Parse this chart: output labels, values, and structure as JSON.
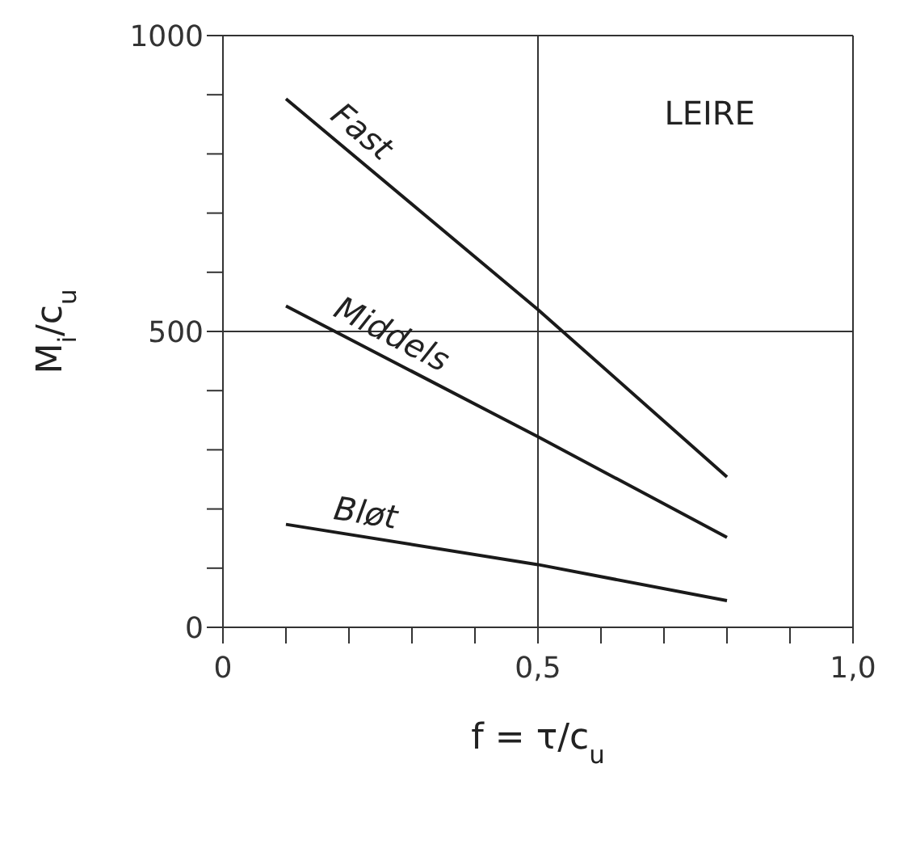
{
  "chart_data": {
    "type": "line",
    "xlabel": "f = τ/c$_{u}$",
    "ylabel": "M$_{i}$/c$_{u}$",
    "series": [
      {
        "name": "Fast",
        "color": "#1a1a1a",
        "x": [
          0.1,
          0.5,
          0.8
        ],
        "values": [
          893,
          537,
          254
        ]
      },
      {
        "name": "Middels",
        "color": "#1a1a1a",
        "x": [
          0.1,
          0.5,
          0.8
        ],
        "values": [
          543,
          322,
          152
        ]
      },
      {
        "name": "Bløt",
        "color": "#1a1a1a",
        "x": [
          0.1,
          0.5,
          0.8
        ],
        "values": [
          174,
          106,
          45
        ]
      }
    ],
    "xlim": [
      0,
      1
    ],
    "xticks": [
      0,
      {
        "value": 0.1,
        "label": null
      },
      {
        "value": 0.2,
        "label": null
      },
      {
        "value": 0.3,
        "label": null
      },
      {
        "value": 0.4,
        "label": null
      },
      {
        "value": 0.5,
        "label": "0,5"
      },
      {
        "value": 0.6,
        "label": null
      },
      {
        "value": 0.7,
        "label": null
      },
      {
        "value": 0.8,
        "label": null
      },
      {
        "value": 0.9,
        "label": null
      },
      {
        "value": 1,
        "label": "1,0"
      }
    ],
    "ylim": [
      0,
      1000
    ],
    "yticks": [
      0,
      {
        "value": 100,
        "label": null
      },
      {
        "value": 200,
        "label": null
      },
      {
        "value": 300,
        "label": null
      },
      {
        "value": 400,
        "label": null
      },
      500,
      {
        "value": 600,
        "label": null
      },
      {
        "value": 700,
        "label": null
      },
      {
        "value": 800,
        "label": null
      },
      {
        "value": 900,
        "label": null
      },
      1000
    ],
    "ref_lines": [
      {
        "axis": "x",
        "value": 0.5
      },
      {
        "axis": "y",
        "value": 500
      }
    ],
    "annotations": [
      "LEIRE"
    ],
    "grid": false,
    "marker": "none",
    "line_style": "solid"
  }
}
